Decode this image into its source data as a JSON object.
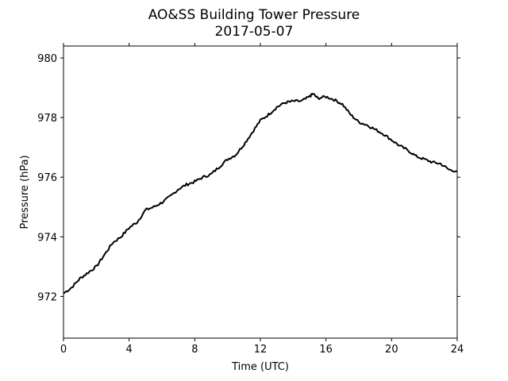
{
  "chart_data": {
    "type": "line",
    "title": "AO&SS Building Tower Pressure",
    "subtitle": "2017-05-07",
    "xlabel": "Time (UTC)",
    "ylabel": "Pressure (hPa)",
    "xlim": [
      0,
      24
    ],
    "ylim": [
      970.6,
      980.4
    ],
    "xticks": [
      0,
      4,
      8,
      12,
      16,
      20,
      24
    ],
    "yticks": [
      972,
      974,
      976,
      978,
      980
    ],
    "grid": false,
    "line_color": "#000000",
    "series": [
      {
        "x": [
          0,
          0.5,
          1,
          1.5,
          2,
          2.5,
          3,
          3.5,
          4,
          4.5,
          5,
          5.5,
          6,
          6.5,
          7,
          7.5,
          8,
          8.5,
          9,
          9.5,
          10,
          10.5,
          11,
          11.5,
          12,
          12.5,
          13,
          13.5,
          14,
          14.5,
          15,
          15.2,
          15.5,
          16,
          16.5,
          17,
          17.5,
          18,
          18.5,
          19,
          19.5,
          20,
          20.5,
          21,
          21.5,
          22,
          22.5,
          23,
          23.5,
          24
        ],
        "values": [
          972.1,
          972.3,
          972.6,
          972.8,
          973.0,
          973.4,
          973.8,
          974.0,
          974.3,
          974.5,
          974.9,
          975.0,
          975.15,
          975.35,
          975.6,
          975.75,
          975.85,
          976.0,
          976.1,
          976.35,
          976.6,
          976.75,
          977.1,
          977.5,
          977.9,
          978.1,
          978.35,
          978.5,
          978.55,
          978.55,
          978.7,
          978.8,
          978.65,
          978.7,
          978.6,
          978.45,
          978.1,
          977.85,
          977.75,
          977.6,
          977.45,
          977.25,
          977.05,
          976.9,
          976.7,
          976.6,
          976.5,
          976.45,
          976.25,
          976.2
        ]
      }
    ]
  }
}
